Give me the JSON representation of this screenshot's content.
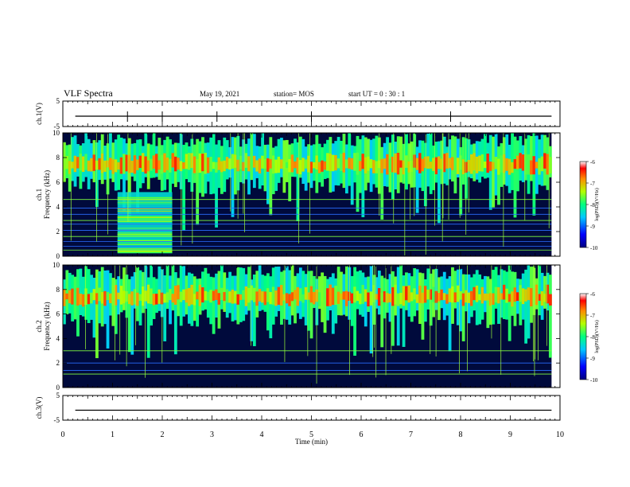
{
  "header": {
    "title": "VLF Spectra",
    "date": "May 19, 2021",
    "station": "station= MOS",
    "start": "start  UT =   0 : 30 : 1"
  },
  "chart_data": [
    {
      "type": "line",
      "name": "ch1-waveform",
      "ylabel": "ch.1(V)",
      "ylim": [
        -5,
        5
      ],
      "yticks": [
        "5",
        "-5"
      ],
      "xlim": [
        0,
        10
      ]
    },
    {
      "type": "heatmap",
      "name": "ch1-spectrogram",
      "ylabel": "ch.1\nFrequency (kHz)",
      "ylim": [
        0,
        10
      ],
      "yticks": [
        "0",
        "2",
        "4",
        "6",
        "8",
        "10"
      ],
      "xlim": [
        0,
        10
      ],
      "colorbar": {
        "label": "log(PSD)(V²/Hz)",
        "range": [
          -10,
          -6
        ],
        "ticks": [
          "-6",
          "-7",
          "-8",
          "-9",
          "-10"
        ]
      },
      "band_kHz": [
        5,
        10
      ],
      "broadband_interval_min": [
        1.1,
        2.2
      ]
    },
    {
      "type": "heatmap",
      "name": "ch2-spectrogram",
      "ylabel": "ch.2\nFrequency (kHz)",
      "ylim": [
        0,
        10
      ],
      "yticks": [
        "0",
        "2",
        "4",
        "6",
        "8",
        "10"
      ],
      "xlim": [
        0,
        10
      ],
      "colorbar": {
        "label": "log(PSD)(V²/Hz)",
        "range": [
          -10,
          -6
        ],
        "ticks": [
          "-6",
          "-7",
          "-8",
          "-9",
          "-10"
        ]
      },
      "band_kHz": [
        5,
        10
      ]
    },
    {
      "type": "line",
      "name": "ch3-waveform",
      "ylabel": "ch.3(V)",
      "ylim": [
        -5,
        5
      ],
      "yticks": [
        "5",
        "-5"
      ],
      "xlim": [
        0,
        10
      ]
    }
  ],
  "xaxis": {
    "label": "Time  (min)",
    "ticks": [
      "0",
      "1",
      "2",
      "3",
      "4",
      "5",
      "6",
      "7",
      "8",
      "9",
      "10"
    ]
  },
  "colors": {
    "ink": "#000000",
    "background": "#ffffff"
  }
}
